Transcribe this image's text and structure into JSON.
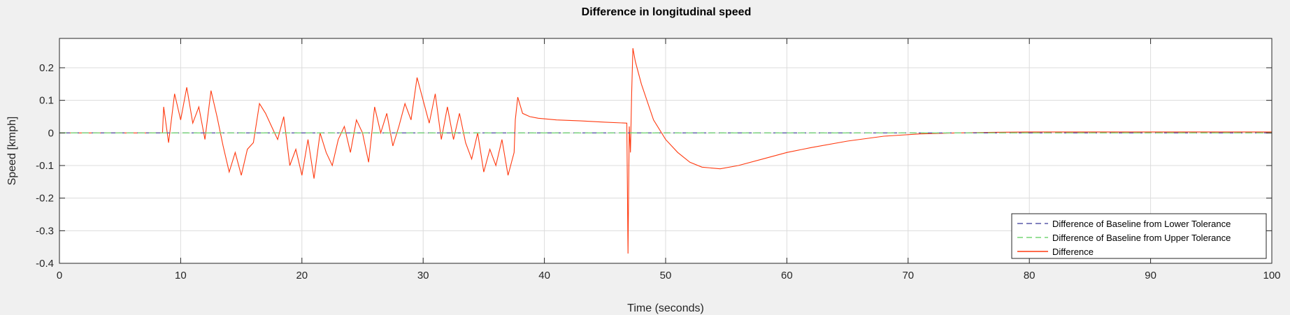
{
  "chart_data": {
    "type": "line",
    "title": "Difference in longitudinal speed",
    "xlabel": "Time (seconds)",
    "ylabel": "Speed [kmph]",
    "xlim": [
      0,
      100
    ],
    "ylim": [
      -0.4,
      0.29
    ],
    "xticks": [
      "0",
      "10",
      "20",
      "30",
      "40",
      "50",
      "60",
      "70",
      "80",
      "90",
      "100"
    ],
    "yticks": [
      "-0.4",
      "-0.3",
      "-0.2",
      "-0.1",
      "0",
      "0.1",
      "0.2"
    ],
    "grid": true,
    "legend_position": "bottom-right",
    "series": [
      {
        "name": "Difference of Baseline from Lower Tolerance",
        "color": "#5a5aa8",
        "dash": "dashed",
        "x": [
          0,
          100
        ],
        "y": [
          0,
          0
        ]
      },
      {
        "name": "Difference of Baseline from Upper Tolerance",
        "color": "#77d677",
        "dash": "dashed",
        "x": [
          0,
          100
        ],
        "y": [
          0,
          0
        ]
      },
      {
        "name": "Difference",
        "color": "#ff3a10",
        "dash": "solid",
        "x": [
          0,
          8.5,
          8.6,
          9.0,
          9.5,
          10.0,
          10.5,
          11.0,
          11.5,
          12.0,
          12.5,
          13.0,
          13.5,
          14.0,
          14.5,
          15.0,
          15.5,
          16.0,
          16.5,
          17.0,
          17.5,
          18.0,
          18.5,
          19.0,
          19.5,
          20.0,
          20.5,
          21.0,
          21.5,
          22.0,
          22.5,
          23.0,
          23.5,
          24.0,
          24.5,
          25.0,
          25.5,
          26.0,
          26.5,
          27.0,
          27.5,
          28.0,
          28.5,
          29.0,
          29.5,
          30.0,
          30.5,
          31.0,
          31.5,
          32.0,
          32.5,
          33.0,
          33.5,
          34.0,
          34.5,
          35.0,
          35.5,
          36.0,
          36.5,
          37.0,
          37.5,
          37.6,
          37.8,
          38.2,
          38.8,
          39.5,
          41,
          43,
          45,
          46.8,
          46.9,
          47.0,
          47.1,
          47.2,
          47.3,
          47.5,
          48.0,
          49.0,
          50.0,
          51.0,
          52.0,
          53.0,
          54.5,
          56.0,
          58.0,
          60.0,
          62.0,
          65.0,
          68.0,
          71.0,
          74.0,
          77.0,
          80.0,
          85.0,
          90.0,
          95.0,
          100.0
        ],
        "y": [
          0,
          0,
          0.08,
          -0.03,
          0.12,
          0.04,
          0.14,
          0.03,
          0.08,
          -0.02,
          0.13,
          0.05,
          -0.04,
          -0.12,
          -0.06,
          -0.13,
          -0.05,
          -0.03,
          0.09,
          0.06,
          0.02,
          -0.02,
          0.05,
          -0.1,
          -0.05,
          -0.13,
          -0.02,
          -0.14,
          0.0,
          -0.06,
          -0.1,
          -0.02,
          0.02,
          -0.06,
          0.04,
          0.0,
          -0.09,
          0.08,
          0.0,
          0.06,
          -0.04,
          0.02,
          0.09,
          0.04,
          0.17,
          0.1,
          0.03,
          0.12,
          -0.02,
          0.08,
          -0.02,
          0.06,
          -0.03,
          -0.08,
          0.0,
          -0.12,
          -0.05,
          -0.1,
          -0.02,
          -0.13,
          -0.06,
          0.04,
          0.11,
          0.06,
          0.05,
          0.045,
          0.04,
          0.037,
          0.033,
          0.03,
          -0.37,
          0.02,
          -0.06,
          0.12,
          0.26,
          0.22,
          0.15,
          0.04,
          -0.02,
          -0.06,
          -0.09,
          -0.105,
          -0.11,
          -0.1,
          -0.08,
          -0.06,
          -0.045,
          -0.025,
          -0.01,
          -0.003,
          0.0,
          0.002,
          0.003,
          0.003,
          0.003,
          0.003,
          0.003
        ]
      }
    ]
  }
}
